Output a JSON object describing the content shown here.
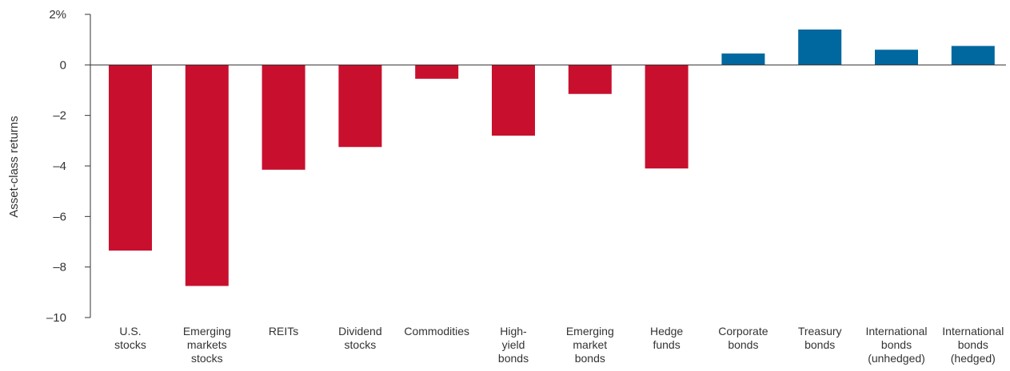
{
  "chart_data": {
    "type": "bar",
    "title": "",
    "xlabel": "",
    "ylabel": "Asset-class returns",
    "ylim": [
      -10,
      2
    ],
    "yticks": [
      2,
      0,
      -2,
      -4,
      -6,
      -8,
      -10
    ],
    "ytick_labels": [
      "2%",
      "0",
      "–2",
      "–4",
      "–6",
      "–8",
      "–10"
    ],
    "grid": false,
    "legend": "none",
    "categories": [
      [
        "U.S.",
        "stocks"
      ],
      [
        "Emerging",
        "markets",
        "stocks"
      ],
      [
        "REITs"
      ],
      [
        "Dividend",
        "stocks"
      ],
      [
        "Commodities"
      ],
      [
        "High-",
        "yield",
        "bonds"
      ],
      [
        "Emerging",
        "market",
        "bonds"
      ],
      [
        "Hedge",
        "funds"
      ],
      [
        "Corporate",
        "bonds"
      ],
      [
        "Treasury",
        "bonds"
      ],
      [
        "International",
        "bonds",
        "(unhedged)"
      ],
      [
        "International",
        "bonds",
        "(hedged)"
      ]
    ],
    "values": [
      -7.35,
      -8.75,
      -4.15,
      -3.25,
      -0.55,
      -2.8,
      -1.15,
      -4.1,
      0.45,
      1.4,
      0.6,
      0.75
    ],
    "colors": {
      "negative": "#c8102e",
      "positive": "#00679f"
    }
  }
}
